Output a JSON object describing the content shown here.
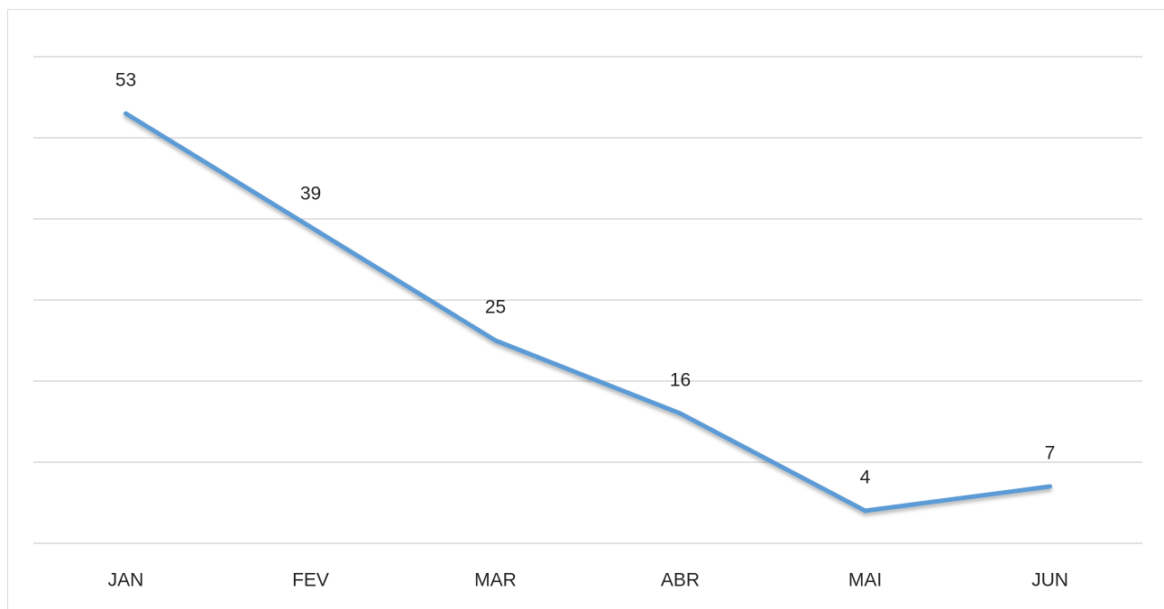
{
  "chart_data": {
    "type": "line",
    "categories": [
      "JAN",
      "FEV",
      "MAR",
      "ABR",
      "MAI",
      "JUN"
    ],
    "series": [
      {
        "color": "#5b9bd5",
        "values": [
          53,
          39,
          25,
          16,
          4,
          7
        ]
      }
    ],
    "ylim": [
      0,
      60
    ],
    "yticks": [
      0,
      10,
      20,
      30,
      40,
      50,
      60
    ],
    "grid": true
  }
}
